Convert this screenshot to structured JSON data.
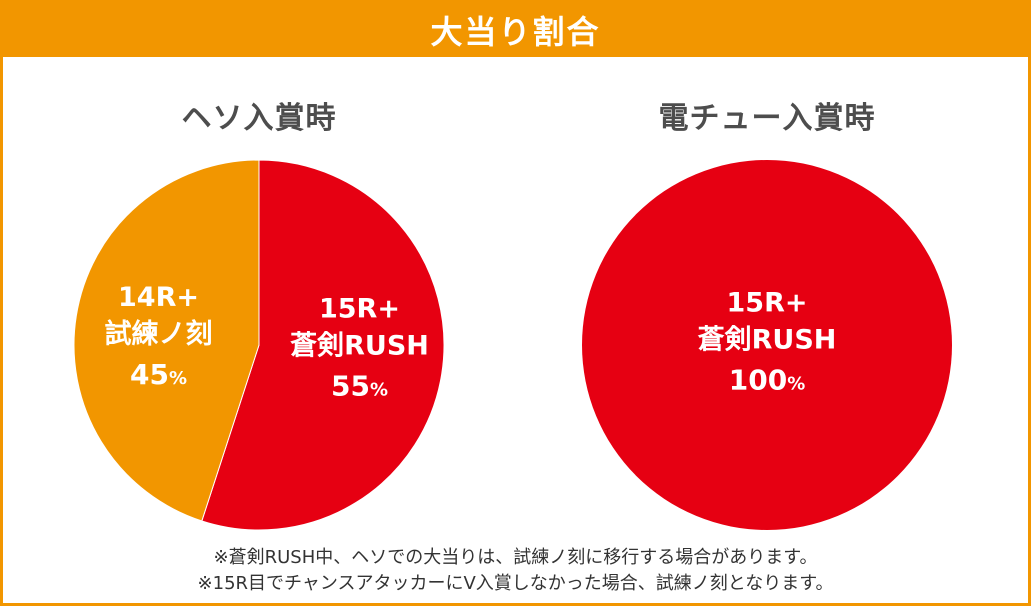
{
  "header": {
    "title": "大当り割合"
  },
  "colors": {
    "orange": "#f29600",
    "red": "#e60012",
    "white": "#ffffff",
    "text": "#4d4d4d"
  },
  "chart_data": [
    {
      "type": "pie",
      "title": "ヘソ入賞時",
      "slices": [
        {
          "label_lines": [
            "15R+",
            "蒼剣RUSH"
          ],
          "value_text": "55",
          "unit": "%",
          "value": 55,
          "color": "#e60012"
        },
        {
          "label_lines": [
            "14R+",
            "試練ノ刻"
          ],
          "value_text": "45",
          "unit": "%",
          "value": 45,
          "color": "#f29600"
        }
      ]
    },
    {
      "type": "pie",
      "title": "電チュー入賞時",
      "slices": [
        {
          "label_lines": [
            "15R+",
            "蒼剣RUSH"
          ],
          "value_text": "100",
          "unit": "%",
          "value": 100,
          "color": "#e60012"
        }
      ]
    }
  ],
  "notes": [
    "※蒼剣RUSH中、ヘソでの大当りは、試練ノ刻に移行する場合があります。",
    "※15R目でチャンスアタッカーにV入賞しなかった場合、試練ノ刻となります。"
  ]
}
